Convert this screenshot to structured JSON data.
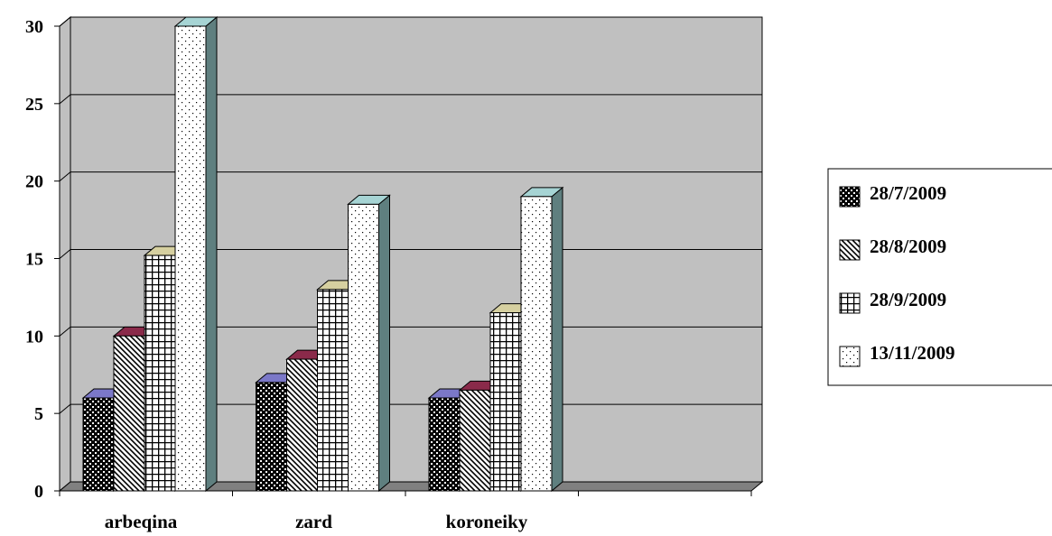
{
  "chart_data": {
    "type": "bar",
    "title": "",
    "xlabel": "",
    "ylabel": "",
    "ylim": [
      0,
      30
    ],
    "yticks": [
      "0",
      "5",
      "10",
      "15",
      "20",
      "25",
      "30"
    ],
    "categories": [
      "arbeqina",
      "zard",
      "koroneiky",
      ""
    ],
    "series": [
      {
        "name": "28/7/2009",
        "values": [
          6,
          7,
          6,
          null
        ],
        "pattern": "checker",
        "top_color": "#7b78c8"
      },
      {
        "name": "28/8/2009",
        "values": [
          10,
          8.5,
          6.5,
          null
        ],
        "pattern": "diagonal",
        "top_color": "#8a2a4a"
      },
      {
        "name": "28/9/2009",
        "values": [
          15.2,
          13,
          11.5,
          null
        ],
        "pattern": "grid",
        "top_color": "#d6d0a0"
      },
      {
        "name": "13/11/2009",
        "values": [
          30,
          18.5,
          19,
          null
        ],
        "pattern": "dots",
        "top_color": "#a6d4d4"
      }
    ],
    "grid": true,
    "legend_position": "right",
    "colors": {
      "plot_background": "#c0c0c0",
      "floor": "#808080",
      "bar_side": "#5f7f7f"
    }
  }
}
